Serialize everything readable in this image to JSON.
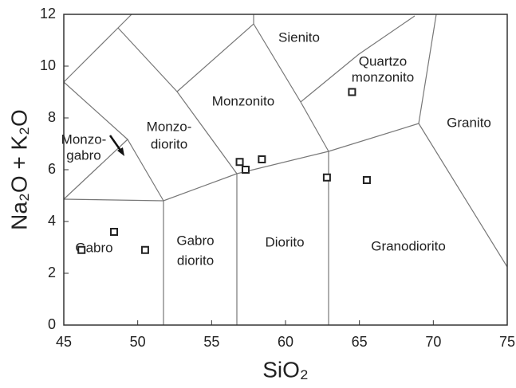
{
  "chart_data": {
    "type": "scatter",
    "xlabel": "SiO₂",
    "ylabel": "Na₂O + K₂O",
    "x": [
      46.2,
      48.4,
      50.5,
      56.9,
      57.3,
      58.4,
      62.8,
      64.5,
      65.5
    ],
    "values": [
      2.9,
      3.6,
      2.9,
      6.3,
      6.0,
      6.4,
      5.7,
      9.0,
      5.6
    ],
    "color": "#222222",
    "xlim": [
      45,
      75
    ],
    "ylim": [
      0,
      12
    ],
    "xticks": [
      45,
      50,
      55,
      60,
      65,
      70,
      75
    ],
    "yticks": [
      0,
      2,
      4,
      6,
      8,
      10,
      12
    ],
    "annotations": [
      "Sienito",
      "Quartzo",
      "monzonito",
      "Monzonito",
      "Granito",
      "Monzo-",
      "diorito",
      "Monzo-",
      "gabro",
      "Gabro",
      "Gabro",
      "diorito",
      "Diorito",
      "Granodiorito"
    ]
  }
}
